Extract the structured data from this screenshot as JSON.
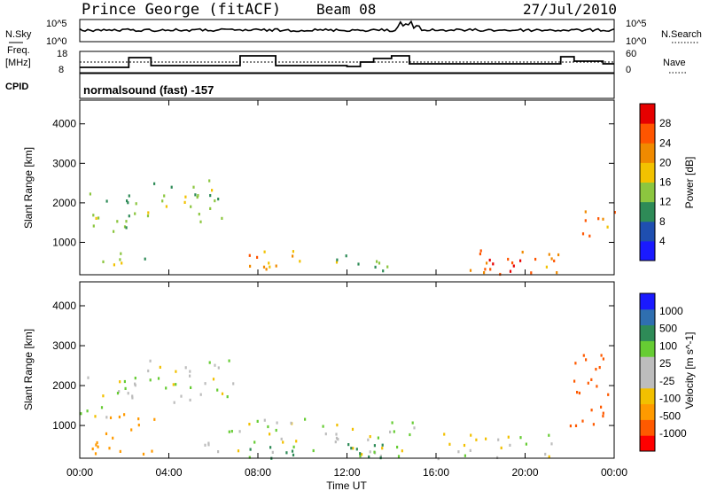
{
  "header": {
    "station": "Prince George (fitACF)",
    "beam": "Beam 08",
    "date": "27/Jul/2010"
  },
  "noise_panel": {
    "left_label": "N.Sky",
    "left_ticks": [
      "10^5",
      "10^0"
    ],
    "right_ticks": [
      "10^5",
      "10^0"
    ],
    "right_label": "N.Search"
  },
  "freq_panel": {
    "left_label_1": "Freq.",
    "left_label_2": "[MHz]",
    "left_ticks": [
      "18",
      "8"
    ],
    "right_ticks": [
      "60",
      "0"
    ],
    "right_label": "Nave"
  },
  "cpid": {
    "label": "CPID",
    "value": "normalsound (fast) -157"
  },
  "axes": {
    "ylabel": "Slant Range [km]",
    "xlabel": "Time UT",
    "y_ticks": [
      "1000",
      "2000",
      "3000",
      "4000"
    ],
    "x_ticks": [
      "00:00",
      "04:00",
      "08:00",
      "12:00",
      "16:00",
      "20:00",
      "00:00"
    ]
  },
  "colors": {
    "power": [
      "#1a1aff",
      "#1f4fb0",
      "#2e8b57",
      "#8cc63f",
      "#f2c200",
      "#f08a00",
      "#ff5500",
      "#e60000"
    ],
    "velocity": [
      "#ff0000",
      "#ff5a00",
      "#ff9a00",
      "#f2c000",
      "#bdbdbd",
      "#bdbdbd",
      "#66cc33",
      "#2e8b57",
      "#2f6fb0",
      "#1a1aff"
    ]
  },
  "chart_data": [
    {
      "type": "heatmap",
      "title": "Power",
      "xlabel": "Time UT",
      "ylabel": "Slant Range [km]",
      "xlim": [
        0,
        24
      ],
      "ylim": [
        180,
        4600
      ],
      "colorbar": {
        "label": "Power [dB]",
        "ticks": [
          "4",
          "8",
          "12",
          "16",
          "20",
          "24",
          "28"
        ],
        "range": [
          0,
          32
        ]
      },
      "regions": [
        {
          "t0": 0.0,
          "t1": 2.5,
          "r0": 1200,
          "r1": 2400,
          "level": 12
        },
        {
          "t0": 1.0,
          "t1": 3.0,
          "r0": 400,
          "r1": 900,
          "level": 16
        },
        {
          "t0": 3.0,
          "t1": 6.5,
          "r0": 1400,
          "r1": 2600,
          "level": 14
        },
        {
          "t0": 7.2,
          "t1": 10.5,
          "r0": 350,
          "r1": 1000,
          "level": 20
        },
        {
          "t0": 10.5,
          "t1": 14.5,
          "r0": 300,
          "r1": 700,
          "level": 12
        },
        {
          "t0": 16.5,
          "t1": 21.5,
          "r0": 250,
          "r1": 850,
          "level": 24
        },
        {
          "t0": 17.5,
          "t1": 20.2,
          "r0": 200,
          "r1": 650,
          "level": 28
        },
        {
          "t0": 22.5,
          "t1": 24.0,
          "r0": 1000,
          "r1": 2000,
          "level": 24
        }
      ]
    },
    {
      "type": "heatmap",
      "title": "Velocity",
      "xlabel": "Time UT",
      "ylabel": "Slant Range [km]",
      "xlim": [
        0,
        24
      ],
      "ylim": [
        180,
        4600
      ],
      "colorbar": {
        "label": "Velocity [m s^-1]",
        "ticks": [
          "1000",
          "500",
          "100",
          "25",
          "-25",
          "-100",
          "-500",
          "-1000"
        ]
      },
      "regions": [
        {
          "t0": 0.0,
          "t1": 2.5,
          "r0": 1200,
          "r1": 2500,
          "value": 0
        },
        {
          "t0": 0.5,
          "t1": 3.5,
          "r0": 300,
          "r1": 1400,
          "value": -300
        },
        {
          "t0": 3.0,
          "t1": 7.0,
          "r0": 1500,
          "r1": 2700,
          "value": 0
        },
        {
          "t0": 5.5,
          "t1": 15.0,
          "r0": 250,
          "r1": 1200,
          "value": 0
        },
        {
          "t0": 7.0,
          "t1": 14.0,
          "r0": 200,
          "r1": 650,
          "value": 120
        },
        {
          "t0": 16.0,
          "t1": 21.5,
          "r0": 200,
          "r1": 900,
          "value": 0
        },
        {
          "t0": 22.0,
          "t1": 24.0,
          "r0": 1000,
          "r1": 3000,
          "value": -700
        }
      ]
    }
  ]
}
